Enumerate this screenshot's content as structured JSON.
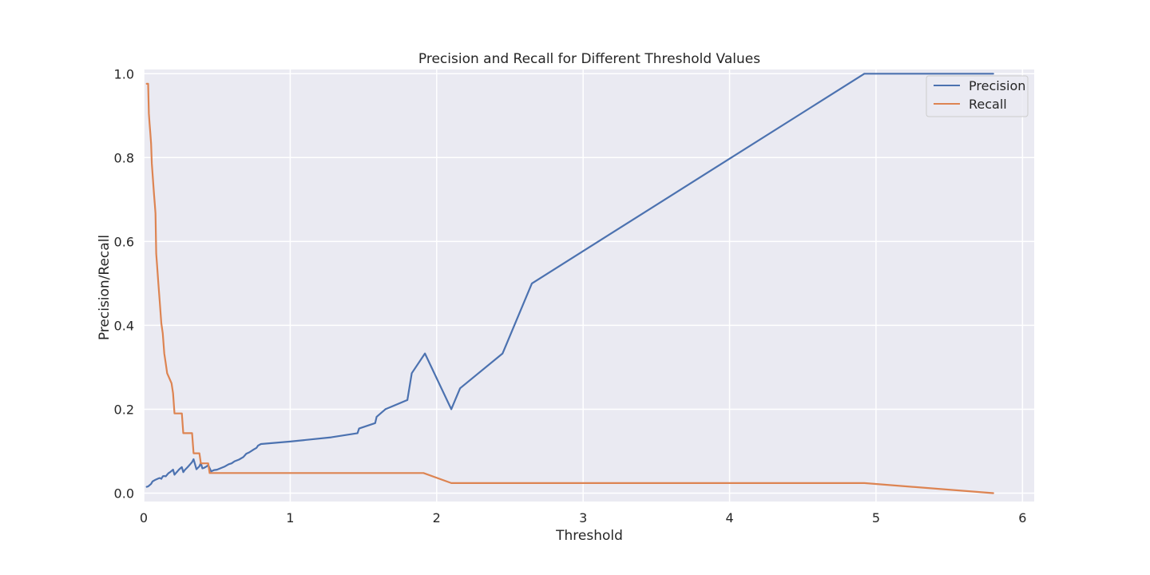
{
  "chart_data": {
    "type": "line",
    "title": "Precision and Recall for Different Threshold Values",
    "xlabel": "Threshold",
    "ylabel": "Precision/Recall",
    "xlim": [
      0,
      6.08
    ],
    "ylim": [
      -0.02,
      1.01
    ],
    "xticks": [
      0,
      1,
      2,
      3,
      4,
      5,
      6
    ],
    "xtick_labels": [
      "0",
      "1",
      "2",
      "3",
      "4",
      "5",
      "6"
    ],
    "yticks": [
      0.0,
      0.2,
      0.4,
      0.6,
      0.8,
      1.0
    ],
    "ytick_labels": [
      "0.0",
      "0.2",
      "0.4",
      "0.6",
      "0.8",
      "1.0"
    ],
    "grid": true,
    "legend_position": "top-right",
    "series": [
      {
        "name": "Precision",
        "color": "#4c72b0",
        "x": [
          0.02,
          0.03,
          0.05,
          0.06,
          0.08,
          0.1,
          0.11,
          0.12,
          0.13,
          0.14,
          0.15,
          0.16,
          0.17,
          0.18,
          0.19,
          0.2,
          0.21,
          0.22,
          0.23,
          0.24,
          0.25,
          0.26,
          0.27,
          0.28,
          0.3,
          0.32,
          0.33,
          0.34,
          0.36,
          0.38,
          0.39,
          0.4,
          0.41,
          0.43,
          0.44,
          0.46,
          0.48,
          0.5,
          0.55,
          0.58,
          0.6,
          0.62,
          0.65,
          0.68,
          0.7,
          0.72,
          0.75,
          0.77,
          0.78,
          0.8,
          1.0,
          1.28,
          1.46,
          1.47,
          1.58,
          1.59,
          1.65,
          1.8,
          1.83,
          1.92,
          2.1,
          2.16,
          2.45,
          2.65,
          4.92,
          5.8
        ],
        "y": [
          0.015,
          0.016,
          0.022,
          0.028,
          0.032,
          0.035,
          0.036,
          0.034,
          0.04,
          0.041,
          0.04,
          0.044,
          0.048,
          0.05,
          0.053,
          0.056,
          0.044,
          0.048,
          0.052,
          0.056,
          0.059,
          0.062,
          0.05,
          0.055,
          0.062,
          0.07,
          0.074,
          0.081,
          0.057,
          0.064,
          0.072,
          0.059,
          0.06,
          0.064,
          0.067,
          0.052,
          0.055,
          0.056,
          0.063,
          0.069,
          0.071,
          0.076,
          0.08,
          0.086,
          0.094,
          0.097,
          0.104,
          0.108,
          0.113,
          0.117,
          0.123,
          0.133,
          0.143,
          0.154,
          0.167,
          0.182,
          0.2,
          0.222,
          0.286,
          0.333,
          0.2,
          0.25,
          0.333,
          0.5,
          1.0,
          1.0
        ]
      },
      {
        "name": "Recall",
        "color": "#dd8452",
        "x": [
          0.02,
          0.03,
          0.035,
          0.04,
          0.045,
          0.05,
          0.055,
          0.06,
          0.065,
          0.07,
          0.075,
          0.08,
          0.085,
          0.09,
          0.1,
          0.11,
          0.12,
          0.13,
          0.14,
          0.15,
          0.16,
          0.19,
          0.2,
          0.21,
          0.26,
          0.27,
          0.33,
          0.34,
          0.38,
          0.39,
          0.44,
          0.45,
          1.91,
          2.1,
          4.92,
          5.8
        ],
        "y": [
          0.976,
          0.976,
          0.905,
          0.881,
          0.857,
          0.833,
          0.786,
          0.762,
          0.738,
          0.714,
          0.69,
          0.667,
          0.571,
          0.548,
          0.5,
          0.452,
          0.405,
          0.381,
          0.333,
          0.31,
          0.286,
          0.262,
          0.238,
          0.19,
          0.19,
          0.143,
          0.143,
          0.095,
          0.095,
          0.071,
          0.071,
          0.048,
          0.048,
          0.024,
          0.024,
          0.0
        ]
      }
    ]
  }
}
